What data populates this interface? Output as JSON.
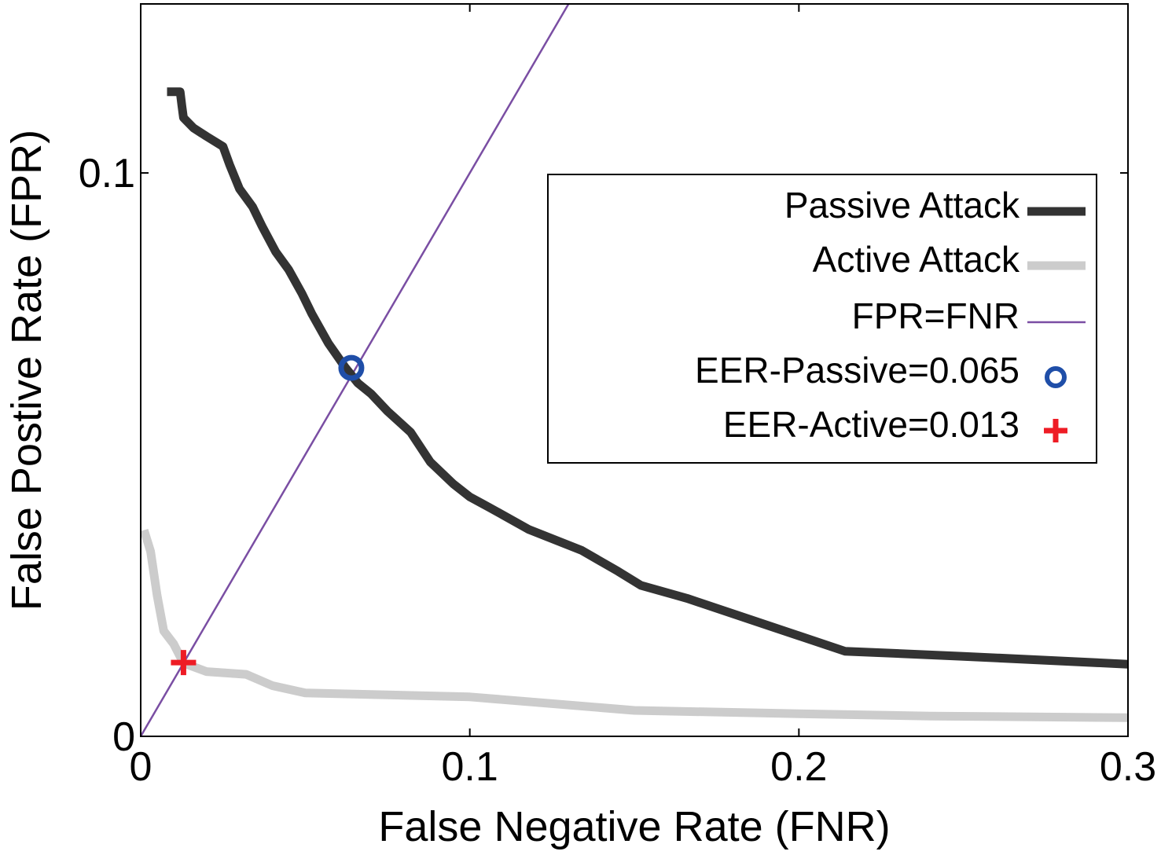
{
  "chart_data": {
    "type": "line",
    "title": "",
    "xlabel": "False Negative Rate (FNR)",
    "ylabel": "False Postive Rate (FPR)",
    "xlim": [
      0,
      0.3
    ],
    "ylim": [
      0,
      0.13
    ],
    "x_ticks": [
      {
        "value": 0,
        "label": "0"
      },
      {
        "value": 0.1,
        "label": "0.1"
      },
      {
        "value": 0.2,
        "label": "0.2"
      },
      {
        "value": 0.3,
        "label": "0.3"
      }
    ],
    "y_ticks": [
      {
        "value": 0,
        "label": "0"
      },
      {
        "value": 0.1,
        "label": "0.1"
      }
    ],
    "grid": false,
    "legend_position": "upper-right",
    "series": [
      {
        "name": "Passive Attack",
        "style": "line",
        "color": "#333333",
        "points": [
          [
            0.008,
            0.1144
          ],
          [
            0.012,
            0.1144
          ],
          [
            0.0125,
            0.112
          ],
          [
            0.013,
            0.1098
          ],
          [
            0.016,
            0.108
          ],
          [
            0.02,
            0.1065
          ],
          [
            0.025,
            0.1047
          ],
          [
            0.027,
            0.1015
          ],
          [
            0.03,
            0.0972
          ],
          [
            0.034,
            0.094
          ],
          [
            0.037,
            0.0904
          ],
          [
            0.041,
            0.086
          ],
          [
            0.045,
            0.0828
          ],
          [
            0.049,
            0.0786
          ],
          [
            0.052,
            0.075
          ],
          [
            0.057,
            0.0698
          ],
          [
            0.062,
            0.0656
          ],
          [
            0.066,
            0.0627
          ],
          [
            0.07,
            0.0608
          ],
          [
            0.075,
            0.0577
          ],
          [
            0.082,
            0.054
          ],
          [
            0.088,
            0.0487
          ],
          [
            0.095,
            0.0448
          ],
          [
            0.1,
            0.0425
          ],
          [
            0.106,
            0.0406
          ],
          [
            0.118,
            0.0367
          ],
          [
            0.134,
            0.033
          ],
          [
            0.145,
            0.0293
          ],
          [
            0.152,
            0.0268
          ],
          [
            0.166,
            0.0245
          ],
          [
            0.191,
            0.0196
          ],
          [
            0.214,
            0.0151
          ],
          [
            0.25,
            0.0142
          ],
          [
            0.3,
            0.0128
          ]
        ]
      },
      {
        "name": "Active Attack",
        "style": "line",
        "color": "#cccccc",
        "points": [
          [
            0.001,
            0.0366
          ],
          [
            0.003,
            0.0328
          ],
          [
            0.005,
            0.025
          ],
          [
            0.007,
            0.0187
          ],
          [
            0.01,
            0.0164
          ],
          [
            0.013,
            0.013
          ],
          [
            0.02,
            0.0115
          ],
          [
            0.032,
            0.011
          ],
          [
            0.04,
            0.009
          ],
          [
            0.05,
            0.0077
          ],
          [
            0.1,
            0.007
          ],
          [
            0.15,
            0.0046
          ],
          [
            0.2,
            0.004
          ],
          [
            0.24,
            0.0036
          ],
          [
            0.3,
            0.0033
          ]
        ]
      },
      {
        "name": "FPR=FNR",
        "style": "line",
        "color": "#7a4ea3",
        "points": [
          [
            0,
            0
          ],
          [
            0.13,
            0.13
          ]
        ]
      },
      {
        "name": "EER-Passive=0.065",
        "style": "marker-circle",
        "color": "#1f4ea8",
        "points": [
          [
            0.064,
            0.0654
          ]
        ]
      },
      {
        "name": "EER-Active=0.013",
        "style": "marker-plus",
        "color": "#ee1c25",
        "points": [
          [
            0.013,
            0.0131
          ]
        ]
      }
    ]
  }
}
